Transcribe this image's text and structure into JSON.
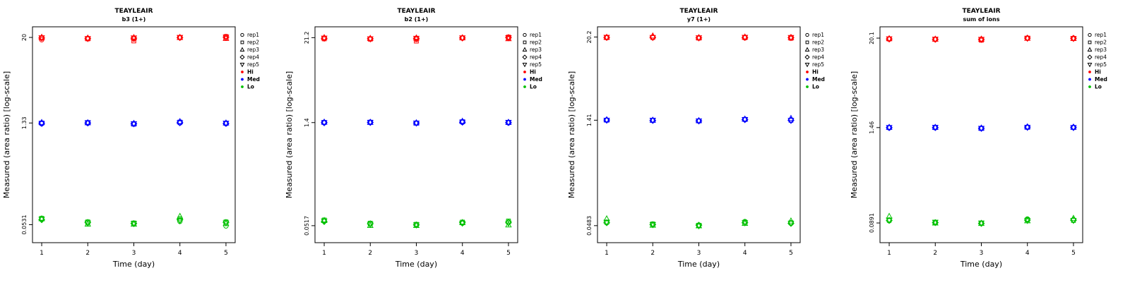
{
  "figure": {
    "xlabel": "Time (day)",
    "ylabel": "Measured (area ratio) [log-scale]",
    "colors": {
      "hi": "#ff0000",
      "med": "#0000ff",
      "lo": "#00c000",
      "axis": "#000000"
    },
    "legend": {
      "reps": [
        {
          "label": "rep1",
          "marker": "circle"
        },
        {
          "label": "rep2",
          "marker": "square"
        },
        {
          "label": "rep3",
          "marker": "triangle-up"
        },
        {
          "label": "rep4",
          "marker": "diamond"
        },
        {
          "label": "rep5",
          "marker": "triangle-down"
        }
      ],
      "levels": [
        {
          "label": "Hi",
          "color": "#ff0000"
        },
        {
          "label": "Med",
          "color": "#0000ff"
        },
        {
          "label": "Lo",
          "color": "#00c000"
        }
      ]
    }
  },
  "chart_data": [
    {
      "type": "scatter",
      "title": "TEAYLEAIR",
      "subtitle": "b3 (1+)",
      "xlabel": "Time (day)",
      "ylabel": "Measured (area ratio) [log-scale]",
      "x": [
        1,
        2,
        3,
        4,
        5
      ],
      "xlim": [
        0.8,
        5.2
      ],
      "ylim": [
        0.03,
        28
      ],
      "yscale": "log",
      "yticks": [
        {
          "value": 20,
          "label": "20"
        },
        {
          "value": 1.33,
          "label": "1.33"
        },
        {
          "value": 0.0531,
          "label": "0.0531"
        }
      ],
      "series": [
        {
          "name": "Hi",
          "color": "#ff0000",
          "values": [
            [
              18.6,
              19.2,
              19.0,
              19.8,
              19.5
            ],
            [
              19.5,
              19.1,
              17.9,
              19.9,
              20.6
            ],
            [
              20.1,
              19.6,
              19.9,
              20.0,
              19.4
            ],
            [
              19.7,
              19.4,
              19.6,
              19.9,
              20.2
            ],
            [
              19.8,
              19.3,
              19.7,
              20.0,
              20.1
            ]
          ]
        },
        {
          "name": "Med",
          "color": "#0000ff",
          "values": [
            [
              1.3,
              1.32,
              1.29,
              1.33,
              1.3
            ],
            [
              1.33,
              1.35,
              1.28,
              1.37,
              1.32
            ],
            [
              1.35,
              1.34,
              1.31,
              1.39,
              1.33
            ],
            [
              1.32,
              1.33,
              1.3,
              1.35,
              1.31
            ],
            [
              1.31,
              1.34,
              1.3,
              1.34,
              1.32
            ]
          ]
        },
        {
          "name": "Lo",
          "color": "#00c000",
          "values": [
            [
              0.063,
              0.056,
              0.055,
              0.059,
              0.051
            ],
            [
              0.065,
              0.058,
              0.056,
              0.064,
              0.058
            ],
            [
              0.064,
              0.054,
              0.054,
              0.069,
              0.055
            ],
            [
              0.062,
              0.057,
              0.055,
              0.062,
              0.057
            ],
            [
              0.063,
              0.056,
              0.055,
              0.06,
              0.056
            ]
          ]
        }
      ]
    },
    {
      "type": "scatter",
      "title": "TEAYLEAIR",
      "subtitle": "b2 (1+)",
      "xlabel": "Time (day)",
      "ylabel": "Measured (area ratio) [log-scale]",
      "x": [
        1,
        2,
        3,
        4,
        5
      ],
      "xlim": [
        0.8,
        5.2
      ],
      "ylim": [
        0.03,
        30
      ],
      "yscale": "log",
      "yticks": [
        {
          "value": 21.2,
          "label": "21.2"
        },
        {
          "value": 1.4,
          "label": "1.4"
        },
        {
          "value": 0.0517,
          "label": "0.0517"
        }
      ],
      "series": [
        {
          "name": "Hi",
          "color": "#ff0000",
          "values": [
            [
              21.0,
              20.3,
              20.1,
              20.9,
              20.7
            ],
            [
              20.4,
              20.2,
              19.0,
              21.0,
              21.6
            ],
            [
              21.2,
              20.7,
              21.0,
              21.1,
              20.5
            ],
            [
              20.8,
              20.5,
              20.7,
              21.0,
              21.3
            ],
            [
              20.9,
              20.4,
              20.8,
              21.1,
              21.2
            ]
          ]
        },
        {
          "name": "Med",
          "color": "#0000ff",
          "values": [
            [
              1.39,
              1.4,
              1.38,
              1.41,
              1.39
            ],
            [
              1.41,
              1.42,
              1.37,
              1.44,
              1.4
            ],
            [
              1.42,
              1.41,
              1.39,
              1.46,
              1.41
            ],
            [
              1.4,
              1.41,
              1.38,
              1.42,
              1.4
            ],
            [
              1.39,
              1.41,
              1.38,
              1.42,
              1.41
            ]
          ]
        },
        {
          "name": "Lo",
          "color": "#00c000",
          "values": [
            [
              0.06,
              0.054,
              0.053,
              0.056,
              0.058
            ],
            [
              0.062,
              0.056,
              0.054,
              0.058,
              0.06
            ],
            [
              0.061,
              0.052,
              0.052,
              0.057,
              0.053
            ],
            [
              0.059,
              0.055,
              0.053,
              0.057,
              0.057
            ],
            [
              0.06,
              0.054,
              0.053,
              0.056,
              0.056
            ]
          ]
        }
      ]
    },
    {
      "type": "scatter",
      "title": "TEAYLEAIR",
      "subtitle": "y7 (1+)",
      "xlabel": "Time (day)",
      "ylabel": "Measured (area ratio) [log-scale]",
      "x": [
        1,
        2,
        3,
        4,
        5
      ],
      "xlim": [
        0.8,
        5.2
      ],
      "ylim": [
        0.028,
        28
      ],
      "yscale": "log",
      "yticks": [
        {
          "value": 20.2,
          "label": "20.2"
        },
        {
          "value": 1.41,
          "label": "1.41"
        },
        {
          "value": 0.0483,
          "label": "0.0483"
        }
      ],
      "series": [
        {
          "name": "Hi",
          "color": "#ff0000",
          "values": [
            [
              19.9,
              19.8,
              19.6,
              19.7,
              20.0
            ],
            [
              19.8,
              19.9,
              19.5,
              19.8,
              19.4
            ],
            [
              20.0,
              20.9,
              19.8,
              20.2,
              19.9
            ],
            [
              19.9,
              20.0,
              19.7,
              19.9,
              19.8
            ],
            [
              20.0,
              19.9,
              19.7,
              20.0,
              19.9
            ]
          ]
        },
        {
          "name": "Med",
          "color": "#0000ff",
          "values": [
            [
              1.42,
              1.4,
              1.37,
              1.43,
              1.4
            ],
            [
              1.41,
              1.4,
              1.38,
              1.45,
              1.41
            ],
            [
              1.43,
              1.41,
              1.39,
              1.46,
              1.49
            ],
            [
              1.42,
              1.4,
              1.38,
              1.44,
              1.41
            ],
            [
              1.41,
              1.41,
              1.38,
              1.44,
              1.4
            ]
          ]
        },
        {
          "name": "Lo",
          "color": "#00c000",
          "values": [
            [
              0.053,
              0.05,
              0.048,
              0.055,
              0.052
            ],
            [
              0.054,
              0.051,
              0.049,
              0.054,
              0.053
            ],
            [
              0.06,
              0.049,
              0.048,
              0.052,
              0.056
            ],
            [
              0.053,
              0.05,
              0.049,
              0.053,
              0.052
            ],
            [
              0.054,
              0.05,
              0.048,
              0.053,
              0.052
            ]
          ]
        }
      ]
    },
    {
      "type": "scatter",
      "title": "TEAYLEAIR",
      "subtitle": "sum of ions",
      "xlabel": "Time (day)",
      "ylabel": "Measured (area ratio) [log-scale]",
      "x": [
        1,
        2,
        3,
        4,
        5
      ],
      "xlim": [
        0.8,
        5.2
      ],
      "ylim": [
        0.05,
        28
      ],
      "yscale": "log",
      "yticks": [
        {
          "value": 20.1,
          "label": "20.1"
        },
        {
          "value": 1.46,
          "label": "1.46"
        },
        {
          "value": 0.0891,
          "label": "0.0891"
        }
      ],
      "series": [
        {
          "name": "Hi",
          "color": "#ff0000",
          "values": [
            [
              19.5,
              19.3,
              19.2,
              20.0,
              20.1
            ],
            [
              19.6,
              19.4,
              18.9,
              20.1,
              19.8
            ],
            [
              19.8,
              19.5,
              19.5,
              20.0,
              19.9
            ],
            [
              19.6,
              19.4,
              19.4,
              20.1,
              20.0
            ],
            [
              19.7,
              19.5,
              19.4,
              20.0,
              19.9
            ]
          ]
        },
        {
          "name": "Med",
          "color": "#0000ff",
          "values": [
            [
              1.45,
              1.46,
              1.43,
              1.48,
              1.47
            ],
            [
              1.46,
              1.46,
              1.42,
              1.47,
              1.46
            ],
            [
              1.47,
              1.47,
              1.44,
              1.49,
              1.48
            ],
            [
              1.46,
              1.46,
              1.43,
              1.48,
              1.47
            ],
            [
              1.46,
              1.47,
              1.43,
              1.47,
              1.46
            ]
          ]
        },
        {
          "name": "Lo",
          "color": "#00c000",
          "values": [
            [
              0.095,
              0.09,
              0.088,
              0.1,
              0.098
            ],
            [
              0.097,
              0.091,
              0.089,
              0.098,
              0.096
            ],
            [
              0.108,
              0.089,
              0.088,
              0.095,
              0.102
            ],
            [
              0.096,
              0.09,
              0.088,
              0.097,
              0.097
            ],
            [
              0.097,
              0.091,
              0.089,
              0.096,
              0.096
            ]
          ]
        }
      ]
    }
  ]
}
